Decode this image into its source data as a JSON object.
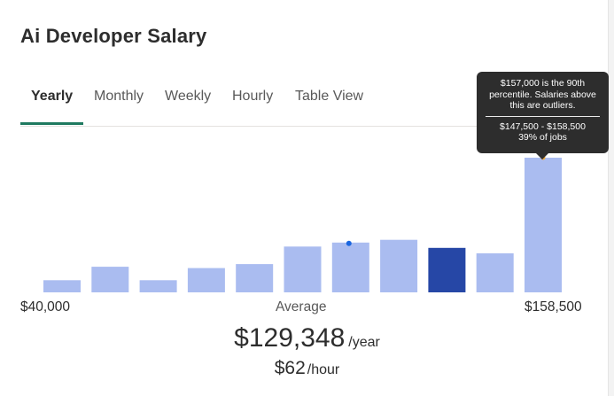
{
  "page": {
    "title": "Ai Developer Salary"
  },
  "tabs": [
    {
      "label": "Yearly",
      "active": true
    },
    {
      "label": "Monthly",
      "active": false
    },
    {
      "label": "Weekly",
      "active": false
    },
    {
      "label": "Hourly",
      "active": false
    },
    {
      "label": "Table View",
      "active": false
    }
  ],
  "colors": {
    "bar": "#aabcf0",
    "bar_highlight": "#2647a6",
    "marker_average": "#1a66e0",
    "marker_90th": "#f0a93a",
    "tab_underline": "#1f7a60",
    "tooltip_bg": "#2d2d2d"
  },
  "tooltip": {
    "line1": "$157,000 is the 90th",
    "line2": "percentile. Salaries above",
    "line3": "this are outliers.",
    "range": "$147,500 - $158,500",
    "share": "39% of jobs"
  },
  "axis": {
    "min_label": "$40,000",
    "center_label": "Average",
    "max_label": "$158,500"
  },
  "salary": {
    "yearly_amount": "$129,348",
    "yearly_unit": "/year",
    "hourly_amount": "$62",
    "hourly_unit": "/hour"
  },
  "chart_data": {
    "type": "bar",
    "x_range": [
      "$40,000",
      "$158,500"
    ],
    "values": [
      9,
      19,
      9,
      18,
      21,
      34,
      37,
      39,
      33,
      29,
      100
    ],
    "value_unit": "percent of tallest bar (estimated)",
    "highlight_index": 8,
    "average_marker_index": 6,
    "percentile_marker_index": 10,
    "ylim": [
      0,
      100
    ]
  }
}
